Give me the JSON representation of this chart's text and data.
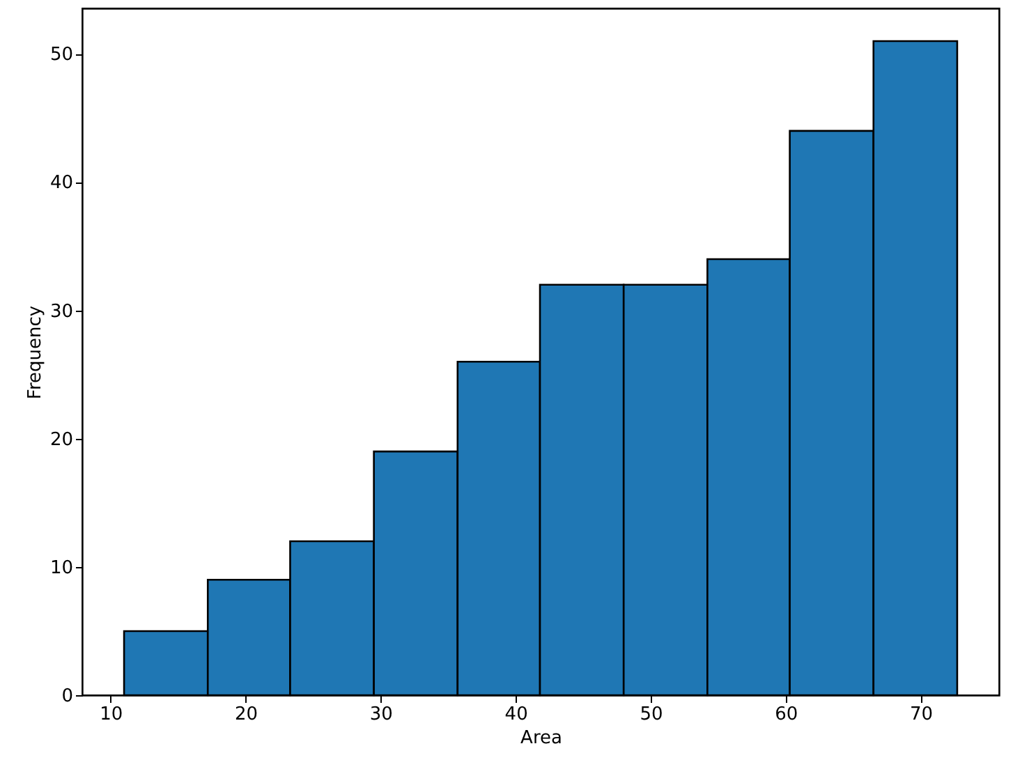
{
  "chart_data": {
    "type": "histogram",
    "xlabel": "Area",
    "ylabel": "Frequency",
    "color": "#1f77b4",
    "bins": [
      11.0,
      17.2,
      23.3,
      29.5,
      35.7,
      41.8,
      48.0,
      54.2,
      60.3,
      66.5,
      72.7
    ],
    "values": [
      5,
      9,
      12,
      19,
      26,
      32,
      32,
      34,
      44,
      51
    ],
    "xlim": [
      7.9,
      75.8
    ],
    "xticks": [
      10,
      20,
      30,
      40,
      50,
      60,
      70
    ],
    "ylim": [
      0,
      53.55
    ],
    "yticks": [
      0,
      10,
      20,
      30,
      40,
      50
    ],
    "grid": false
  }
}
